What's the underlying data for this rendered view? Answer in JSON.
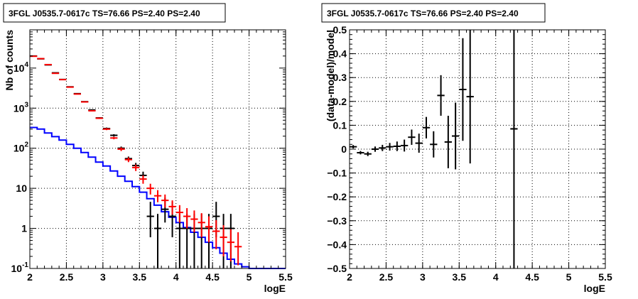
{
  "chart_data": [
    {
      "type": "histogram",
      "title": "3FGL J0535.7-0617c TS=76.66 PS=2.40 PS=2.40",
      "xlabel": "logE",
      "ylabel": "Nb of counts",
      "xlim": [
        2,
        5.5
      ],
      "ylim": [
        0.1,
        90000
      ],
      "yscale": "log",
      "grid": true,
      "xticks": [
        {
          "value": 2,
          "label": "2"
        },
        {
          "value": 2.5,
          "label": "2.5"
        },
        {
          "value": 3,
          "label": "3"
        },
        {
          "value": 3.5,
          "label": "3.5"
        },
        {
          "value": 4,
          "label": "4"
        },
        {
          "value": 4.5,
          "label": "4.5"
        },
        {
          "value": 5,
          "label": "5"
        },
        {
          "value": 5.5,
          "label": "5.5"
        }
      ],
      "yticks": [
        {
          "value": 0.1,
          "label": "10",
          "exp": "-1"
        },
        {
          "value": 1,
          "label": "1",
          "exp": ""
        },
        {
          "value": 10,
          "label": "10",
          "exp": ""
        },
        {
          "value": 100,
          "label": "10",
          "exp": "2"
        },
        {
          "value": 1000,
          "label": "10",
          "exp": "3"
        },
        {
          "value": 10000,
          "label": "10",
          "exp": "4"
        }
      ],
      "bin_edges": [
        2.0,
        2.1,
        2.2,
        2.3,
        2.4,
        2.5,
        2.6,
        2.7,
        2.8,
        2.9,
        3.0,
        3.1,
        3.2,
        3.3,
        3.4,
        3.5,
        3.6,
        3.7,
        3.8,
        3.9,
        4.0,
        4.1,
        4.2,
        4.3,
        4.4,
        4.5,
        4.6,
        4.7,
        4.8,
        4.9,
        5.0,
        5.1,
        5.2,
        5.3,
        5.4,
        5.5
      ],
      "series": [
        {
          "kind": "step",
          "color": "#0000ff",
          "values": [
            330,
            300,
            240,
            195,
            160,
            125,
            100,
            78,
            60,
            45,
            36,
            27,
            20,
            15,
            11,
            8,
            5.5,
            3.8,
            2.6,
            1.9,
            1.4,
            1.05,
            0.8,
            0.6,
            0.45,
            0.33,
            0.24,
            0.17,
            0.13,
            0.11,
            0.1,
            0.1,
            0.1,
            0.1,
            0.1
          ]
        },
        {
          "kind": "errorbar",
          "color": "#000000",
          "x": [
            2.05,
            2.15,
            2.25,
            2.35,
            2.45,
            2.55,
            2.65,
            2.75,
            2.85,
            2.95,
            3.05,
            3.15,
            3.25,
            3.35,
            3.45,
            3.55,
            3.65,
            3.75,
            3.85,
            3.95,
            4.05,
            4.15,
            4.25,
            4.35,
            4.45,
            4.55,
            4.65,
            4.75
          ],
          "y": [
            20000,
            17000,
            12000,
            7600,
            5200,
            3400,
            2300,
            1450,
            900,
            570,
            310,
            210,
            100,
            55,
            37,
            21,
            2,
            1,
            3,
            2,
            1,
            1,
            1,
            1,
            1,
            2,
            1,
            1
          ],
          "ylo": [
            19860,
            16870,
            11890,
            7513,
            5128,
            3342,
            2252,
            1412,
            870,
            546,
            292,
            196,
            90,
            48,
            31,
            17,
            0.6,
            0.1,
            1.4,
            0.6,
            0.1,
            0.1,
            0.1,
            0.1,
            0.1,
            0.6,
            0.1,
            0.1
          ],
          "yhi": [
            20140,
            17130,
            12110,
            7687,
            5272,
            3458,
            2348,
            1488,
            930,
            594,
            328,
            224,
            110,
            62,
            43,
            26,
            4.6,
            2.3,
            5.8,
            4.6,
            2.3,
            2.3,
            2.3,
            2.3,
            2.3,
            4.6,
            2.3,
            2.3
          ]
        },
        {
          "kind": "errorbar",
          "color": "#ff0000",
          "x": [
            2.05,
            2.15,
            2.25,
            2.35,
            2.45,
            2.55,
            2.65,
            2.75,
            2.85,
            2.95,
            3.05,
            3.15,
            3.25,
            3.35,
            3.45,
            3.55,
            3.65,
            3.75,
            3.85,
            3.95,
            4.05,
            4.15,
            4.25,
            4.35,
            4.45,
            4.55,
            4.65,
            4.75,
            4.85
          ],
          "y": [
            19700,
            17200,
            12200,
            7400,
            5150,
            3350,
            2250,
            1430,
            860,
            560,
            300,
            180,
            95,
            52,
            33,
            17,
            10,
            6.5,
            5,
            3.5,
            2.5,
            2,
            1.7,
            1.4,
            1.1,
            0.85,
            0.6,
            0.45,
            0.35
          ],
          "ylo": [
            19560,
            17070,
            12090,
            7313,
            5078,
            3292,
            2202,
            1392,
            831,
            536,
            283,
            167,
            85,
            45,
            27,
            13,
            7,
            4.5,
            3.3,
            2.2,
            1.4,
            1.0,
            0.8,
            0.6,
            0.45,
            0.3,
            0.2,
            0.15,
            0.12
          ],
          "yhi": [
            19840,
            17330,
            12310,
            7487,
            5222,
            3408,
            2298,
            1468,
            889,
            584,
            317,
            193,
            105,
            59,
            39,
            21,
            13,
            9,
            7,
            5,
            3.8,
            3.2,
            2.8,
            2.4,
            2.0,
            1.6,
            1.2,
            0.95,
            0.8
          ]
        }
      ]
    },
    {
      "type": "scatter",
      "title": "3FGL J0535.7-0617c TS=76.66 PS=2.40 PS=2.40",
      "xlabel": "logE",
      "ylabel": "(data-model)/model",
      "xlim": [
        2,
        5.5
      ],
      "ylim": [
        -0.5,
        0.5
      ],
      "grid": true,
      "xticks": [
        {
          "value": 2,
          "label": "2"
        },
        {
          "value": 2.5,
          "label": "2.5"
        },
        {
          "value": 3,
          "label": "3"
        },
        {
          "value": 3.5,
          "label": "3.5"
        },
        {
          "value": 4,
          "label": "4"
        },
        {
          "value": 4.5,
          "label": "4.5"
        },
        {
          "value": 5,
          "label": "5"
        },
        {
          "value": 5.5,
          "label": "5.5"
        }
      ],
      "yticks": [
        {
          "value": -0.5,
          "label": "−0.5"
        },
        {
          "value": -0.4,
          "label": "−0.4"
        },
        {
          "value": -0.3,
          "label": "−0.3"
        },
        {
          "value": -0.2,
          "label": "−0.2"
        },
        {
          "value": -0.1,
          "label": "−0.1"
        },
        {
          "value": 0,
          "label": "0"
        },
        {
          "value": 0.1,
          "label": "0.1"
        },
        {
          "value": 0.2,
          "label": "0.2"
        },
        {
          "value": 0.3,
          "label": "0.3"
        },
        {
          "value": 0.4,
          "label": "0.4"
        },
        {
          "value": 0.5,
          "label": "0.5"
        }
      ],
      "points": [
        {
          "x": 2.05,
          "y": 0.01,
          "err": 0.007
        },
        {
          "x": 2.15,
          "y": -0.015,
          "err": 0.007
        },
        {
          "x": 2.25,
          "y": -0.02,
          "err": 0.009
        },
        {
          "x": 2.35,
          "y": 0.0,
          "err": 0.011
        },
        {
          "x": 2.45,
          "y": 0.005,
          "err": 0.013
        },
        {
          "x": 2.55,
          "y": 0.01,
          "err": 0.016
        },
        {
          "x": 2.65,
          "y": 0.012,
          "err": 0.02
        },
        {
          "x": 2.75,
          "y": 0.015,
          "err": 0.025
        },
        {
          "x": 2.85,
          "y": 0.05,
          "err": 0.032
        },
        {
          "x": 2.95,
          "y": 0.025,
          "err": 0.04
        },
        {
          "x": 3.05,
          "y": 0.09,
          "err": 0.045
        },
        {
          "x": 3.15,
          "y": 0.02,
          "err": 0.055
        },
        {
          "x": 3.25,
          "y": 0.225,
          "err": 0.085
        },
        {
          "x": 3.35,
          "y": 0.03,
          "err": 0.11
        },
        {
          "x": 3.45,
          "y": 0.055,
          "err": 0.14
        },
        {
          "x": 3.55,
          "y": 0.25,
          "err": 0.215
        },
        {
          "x": 3.65,
          "y": 0.22,
          "err": 0.28
        },
        {
          "x": 4.25,
          "y": 0.085,
          "err": 1.0
        }
      ]
    }
  ]
}
